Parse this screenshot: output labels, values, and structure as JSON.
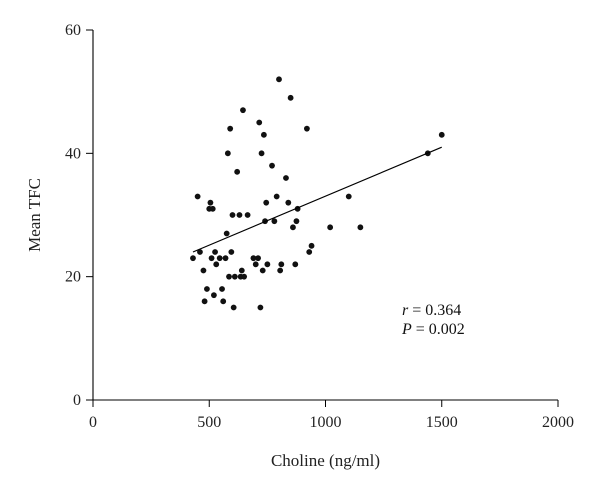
{
  "chart_data": {
    "type": "scatter",
    "xlabel": "Choline (ng/ml)",
    "ylabel": "Mean TFC",
    "xlim": [
      0,
      2000
    ],
    "ylim": [
      0,
      60
    ],
    "xticks": [
      0,
      500,
      1000,
      1500,
      2000
    ],
    "yticks": [
      0,
      20,
      40,
      60
    ],
    "xtick_labels": [
      "0",
      "500",
      "1000",
      "1500",
      "2000"
    ],
    "ytick_labels": [
      "0",
      "20",
      "40",
      "60"
    ],
    "grid": false,
    "points": [
      [
        430,
        23
      ],
      [
        450,
        33
      ],
      [
        460,
        24
      ],
      [
        475,
        21
      ],
      [
        480,
        16
      ],
      [
        490,
        18
      ],
      [
        500,
        31
      ],
      [
        505,
        32
      ],
      [
        510,
        23
      ],
      [
        515,
        31
      ],
      [
        520,
        17
      ],
      [
        525,
        24
      ],
      [
        530,
        22
      ],
      [
        545,
        23
      ],
      [
        555,
        18
      ],
      [
        560,
        16
      ],
      [
        570,
        23
      ],
      [
        575,
        27
      ],
      [
        580,
        40
      ],
      [
        585,
        20
      ],
      [
        590,
        44
      ],
      [
        595,
        24
      ],
      [
        600,
        30
      ],
      [
        605,
        15
      ],
      [
        610,
        20
      ],
      [
        620,
        37
      ],
      [
        630,
        30
      ],
      [
        635,
        20
      ],
      [
        640,
        21
      ],
      [
        645,
        47
      ],
      [
        650,
        20
      ],
      [
        665,
        30
      ],
      [
        690,
        23
      ],
      [
        700,
        22
      ],
      [
        710,
        23
      ],
      [
        715,
        45
      ],
      [
        720,
        15
      ],
      [
        725,
        40
      ],
      [
        730,
        21
      ],
      [
        735,
        43
      ],
      [
        740,
        29
      ],
      [
        745,
        32
      ],
      [
        750,
        22
      ],
      [
        770,
        38
      ],
      [
        780,
        29
      ],
      [
        790,
        33
      ],
      [
        800,
        52
      ],
      [
        805,
        21
      ],
      [
        810,
        22
      ],
      [
        830,
        36
      ],
      [
        840,
        32
      ],
      [
        850,
        49
      ],
      [
        860,
        28
      ],
      [
        870,
        22
      ],
      [
        875,
        29
      ],
      [
        880,
        31
      ],
      [
        920,
        44
      ],
      [
        930,
        24
      ],
      [
        940,
        25
      ],
      [
        1020,
        28
      ],
      [
        1100,
        33
      ],
      [
        1150,
        28
      ],
      [
        1440,
        40
      ],
      [
        1500,
        43
      ]
    ],
    "trendline": {
      "x": [
        430,
        1500
      ],
      "y": [
        24,
        41
      ]
    },
    "annotations": [
      {
        "var": "r",
        "text": " = 0.364"
      },
      {
        "var": "P",
        "text": " = 0.002"
      }
    ]
  }
}
